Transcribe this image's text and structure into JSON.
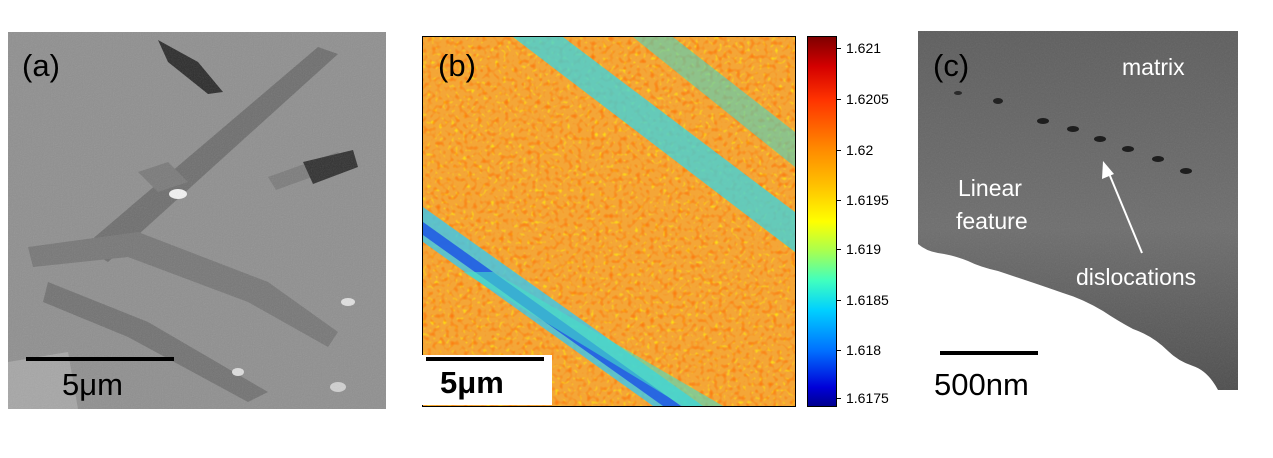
{
  "panels": {
    "a": {
      "label": "(a)",
      "scale_label": "5μm"
    },
    "b": {
      "label": "(b)",
      "scale_label": "5μm"
    },
    "c": {
      "label": "(c)",
      "scale_label": "500nm",
      "annotations": {
        "matrix": "matrix",
        "linear_feature_line1": "Linear",
        "linear_feature_line2": "feature",
        "dislocations": "dislocations"
      }
    }
  },
  "colorbar": {
    "ticks": [
      "1.621",
      "1.6205",
      "1.62",
      "1.6195",
      "1.619",
      "1.6185",
      "1.618",
      "1.6175"
    ]
  },
  "colors": {
    "sem_gray": "#8e8e8e",
    "map_high": "#7f0000",
    "map_low": "#00008f",
    "tem_matrix": "#6c6c6c"
  }
}
